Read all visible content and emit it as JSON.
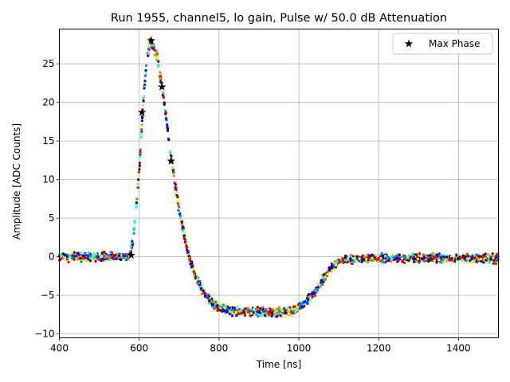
{
  "chart_data": {
    "type": "scatter",
    "title": "Run 1955, channel5, lo gain, Pulse w/ 50.0 dB Attenuation",
    "xlabel": "Time [ns]",
    "ylabel": "Amplitude [ADC Counts]",
    "xlim": [
      400,
      1500
    ],
    "ylim": [
      -10.5,
      29.5
    ],
    "xticks": [
      400,
      600,
      800,
      1000,
      1200,
      1400
    ],
    "yticks": [
      -10,
      -5,
      0,
      5,
      10,
      15,
      20,
      25
    ],
    "grid": true,
    "legend": {
      "position": "top-right",
      "entries": [
        "Max Phase"
      ]
    },
    "colormap": [
      "#00007f",
      "#0000ff",
      "#007fff",
      "#00ffff",
      "#7fff7f",
      "#ffff00",
      "#ff7f00",
      "#ff0000",
      "#7f0000"
    ],
    "pulse_shape": {
      "x": [
        400,
        575,
        585,
        600,
        610,
        620,
        630,
        645,
        660,
        680,
        700,
        720,
        740,
        760,
        780,
        800,
        850,
        950,
        990,
        1010,
        1030,
        1050,
        1070,
        1090,
        1110,
        1150,
        1500
      ],
      "y": [
        0,
        0,
        2,
        11,
        20,
        26,
        28,
        26,
        21,
        13,
        6,
        1,
        -2.5,
        -4.5,
        -5.8,
        -6.7,
        -7.1,
        -7.2,
        -6.9,
        -6.2,
        -5.2,
        -3.8,
        -2.2,
        -1.0,
        -0.5,
        -0.2,
        -0.2
      ]
    },
    "noise_amplitude": 0.35,
    "points_per_series": 2200,
    "max_phase_series": {
      "name": "Max Phase",
      "x": [
        580,
        607,
        630,
        657,
        680
      ],
      "y": [
        0.2,
        18.7,
        28.0,
        22.0,
        12.4
      ]
    }
  }
}
